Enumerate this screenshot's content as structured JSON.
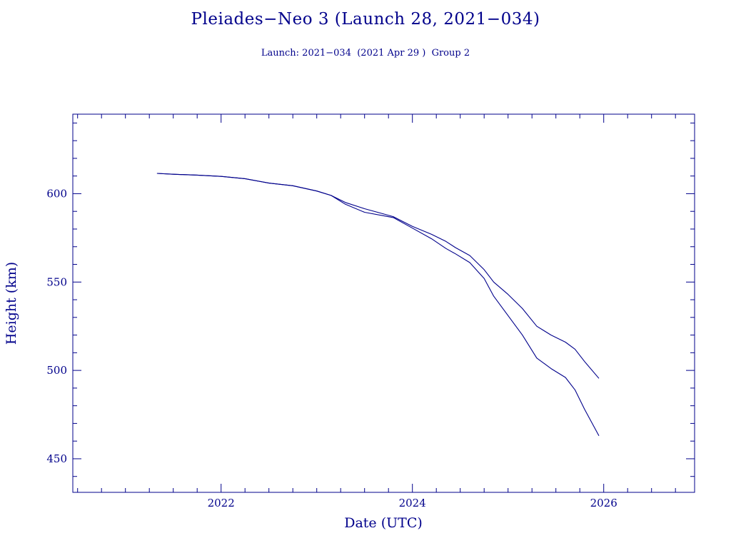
{
  "title": "Pleiades−Neo 3 (Launch 28, 2021−034)",
  "subtitle": "Launch: 2021−034  (2021 Apr 29 )  Group 2",
  "colors": {
    "ink": "#00008b",
    "background": "#ffffff"
  },
  "chart_data": {
    "type": "line",
    "title": "Pleiades−Neo 3 (Launch 28, 2021−034)",
    "subtitle": "Launch: 2021−034  (2021 Apr 29 )  Group 2",
    "xlabel": "Date (UTC)",
    "ylabel": "Height (km)",
    "xlim": [
      2020.45,
      2026.95
    ],
    "ylim": [
      431,
      645
    ],
    "xticks": [
      2022,
      2024,
      2026
    ],
    "xtick_labels": [
      "2022",
      "2024",
      "2026"
    ],
    "yticks": [
      450,
      500,
      550,
      600
    ],
    "ytick_labels": [
      "450",
      "500",
      "550",
      "600"
    ],
    "grid": false,
    "legend": "none",
    "series": [
      {
        "x": [
          2021.33,
          2021.5,
          2021.75,
          2022.0,
          2022.25,
          2022.5,
          2022.75,
          2023.0,
          2023.15,
          2023.3,
          2023.5,
          2023.7,
          2023.8,
          2024.0,
          2024.2,
          2024.35,
          2024.45,
          2024.6,
          2024.75,
          2024.85,
          2025.0,
          2025.15,
          2025.3,
          2025.45,
          2025.6,
          2025.7,
          2025.8,
          2025.95
        ],
        "y": [
          611.5,
          611,
          610.5,
          609.8,
          608.5,
          606,
          604.5,
          601.5,
          599,
          595,
          591.5,
          588.5,
          587,
          581.5,
          577,
          573,
          569.5,
          565,
          557,
          550,
          543,
          535,
          525,
          520,
          516,
          512,
          505,
          495.5
        ]
      },
      {
        "x": [
          2021.33,
          2021.5,
          2021.75,
          2022.0,
          2022.25,
          2022.5,
          2022.75,
          2023.0,
          2023.15,
          2023.3,
          2023.5,
          2023.7,
          2023.8,
          2024.0,
          2024.2,
          2024.35,
          2024.45,
          2024.6,
          2024.75,
          2024.85,
          2025.0,
          2025.15,
          2025.3,
          2025.45,
          2025.6,
          2025.7,
          2025.8,
          2025.95
        ],
        "y": [
          611.5,
          611,
          610.5,
          609.8,
          608.5,
          606,
          604.5,
          601.5,
          599,
          594,
          589.5,
          587.5,
          586.5,
          580.5,
          574.5,
          569,
          566,
          561,
          552,
          542,
          531,
          520,
          507,
          501,
          496,
          489,
          478,
          463
        ]
      }
    ]
  }
}
